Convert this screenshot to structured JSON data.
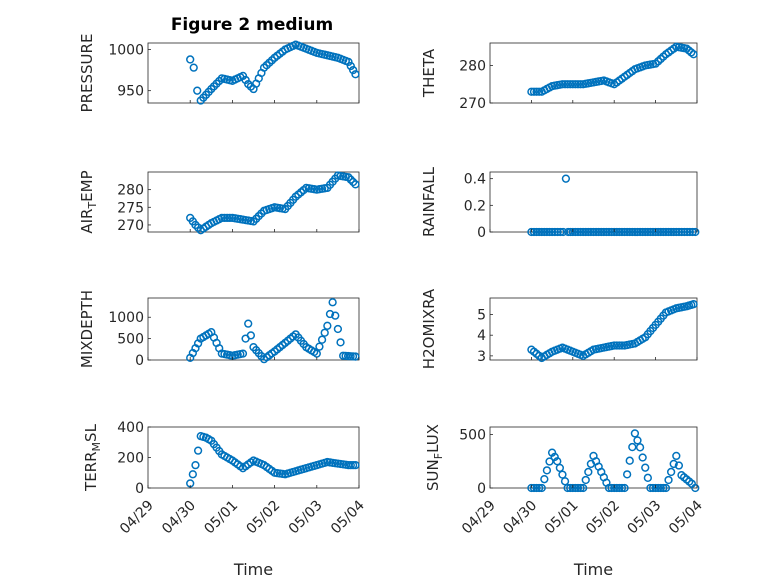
{
  "figure": {
    "title": "Figure 2 medium"
  },
  "chart_data": [
    {
      "type": "scatter",
      "id": "pressure",
      "ylabel": "PRESSURE",
      "ylim": [
        935,
        1008
      ],
      "yticks": [
        950,
        1000
      ],
      "xticks_shown": false,
      "color": "#0072BD",
      "x": [
        "04/30 00:00",
        "04/30 02:00",
        "04/30 04:00",
        "04/30 06:00",
        "04/30 09:00",
        "04/30 12:00",
        "04/30 18:00",
        "05/01 00:00",
        "05/01 06:00",
        "05/01 09:00",
        "05/01 12:00",
        "05/01 18:00",
        "05/02 00:00",
        "05/02 06:00",
        "05/02 12:00",
        "05/02 18:00",
        "05/03 00:00",
        "05/03 06:00",
        "05/03 12:00",
        "05/03 18:00",
        "05/03 22:00"
      ],
      "y": [
        988,
        978,
        950,
        938,
        945,
        952,
        965,
        962,
        968,
        958,
        952,
        978,
        990,
        1000,
        1006,
        1001,
        996,
        993,
        990,
        985,
        970
      ]
    },
    {
      "type": "scatter",
      "id": "theta",
      "ylabel": "THETA",
      "ylim": [
        270,
        286
      ],
      "yticks": [
        270,
        280
      ],
      "xticks_shown": false,
      "color": "#0072BD",
      "x": [
        "04/30 00:00",
        "04/30 06:00",
        "04/30 12:00",
        "04/30 18:00",
        "05/01 00:00",
        "05/01 06:00",
        "05/01 12:00",
        "05/01 18:00",
        "05/02 00:00",
        "05/02 06:00",
        "05/02 12:00",
        "05/02 18:00",
        "05/03 00:00",
        "05/03 06:00",
        "05/03 12:00",
        "05/03 18:00",
        "05/03 22:00"
      ],
      "y": [
        273,
        273,
        274.5,
        275,
        275,
        275,
        275.5,
        276,
        275,
        277,
        279,
        280,
        280.5,
        283,
        285,
        284.5,
        283
      ]
    },
    {
      "type": "scatter",
      "id": "air_temp",
      "ylabel_main": "AIR",
      "ylabel_sub": "T",
      "ylabel_rest": "EMP",
      "ylim": [
        268,
        285
      ],
      "yticks": [
        270,
        275,
        280
      ],
      "xticks_shown": false,
      "color": "#0072BD",
      "x": [
        "04/30 00:00",
        "04/30 03:00",
        "04/30 06:00",
        "04/30 12:00",
        "04/30 18:00",
        "05/01 00:00",
        "05/01 06:00",
        "05/01 12:00",
        "05/01 18:00",
        "05/02 00:00",
        "05/02 06:00",
        "05/02 12:00",
        "05/02 18:00",
        "05/03 00:00",
        "05/03 06:00",
        "05/03 12:00",
        "05/03 18:00",
        "05/03 22:00"
      ],
      "y": [
        272,
        270,
        268.5,
        270.5,
        272,
        272,
        271.5,
        271,
        274,
        275,
        274.5,
        278,
        280.5,
        280,
        280.5,
        284,
        283.5,
        281.5
      ]
    },
    {
      "type": "scatter",
      "id": "rainfall",
      "ylabel": "RAINFALL",
      "ylim": [
        0,
        0.45
      ],
      "yticks": [
        0,
        0.2,
        0.4
      ],
      "ytick_labels": [
        "0",
        "0.2",
        "0.4"
      ],
      "xticks_shown": false,
      "color": "#0072BD",
      "x": [
        "04/30 00:00",
        "04/30 12:00",
        "04/30 20:00",
        "05/01 00:00",
        "05/01 12:00",
        "05/02 00:00",
        "05/02 12:00",
        "05/03 00:00",
        "05/03 12:00",
        "05/03 23:00"
      ],
      "y": [
        0,
        0,
        0.4,
        0,
        0,
        0,
        0,
        0,
        0,
        0
      ]
    },
    {
      "type": "scatter",
      "id": "mixdepth",
      "ylabel": "MIXDEPTH",
      "ylim": [
        0,
        1450
      ],
      "yticks": [
        0,
        500,
        1000
      ],
      "xticks_shown": false,
      "color": "#0072BD",
      "x": [
        "04/30 00:00",
        "04/30 06:00",
        "04/30 12:00",
        "04/30 18:00",
        "05/01 00:00",
        "05/01 06:00",
        "05/01 09:00",
        "05/01 12:00",
        "05/01 18:00",
        "05/02 00:00",
        "05/02 06:00",
        "05/02 12:00",
        "05/02 18:00",
        "05/03 00:00",
        "05/03 06:00",
        "05/03 09:00",
        "05/03 15:00",
        "05/03 22:00"
      ],
      "y": [
        50,
        500,
        650,
        150,
        100,
        150,
        850,
        300,
        20,
        200,
        400,
        600,
        300,
        150,
        800,
        1350,
        100,
        80
      ]
    },
    {
      "type": "scatter",
      "id": "h2omixra",
      "ylabel": "H2OMIXRA",
      "ylim": [
        2.8,
        5.8
      ],
      "yticks": [
        3,
        4,
        5
      ],
      "xticks_shown": false,
      "color": "#0072BD",
      "x": [
        "04/30 00:00",
        "04/30 06:00",
        "04/30 12:00",
        "04/30 18:00",
        "05/01 00:00",
        "05/01 06:00",
        "05/01 12:00",
        "05/01 18:00",
        "05/02 00:00",
        "05/02 06:00",
        "05/02 12:00",
        "05/02 18:00",
        "05/03 00:00",
        "05/03 06:00",
        "05/03 12:00",
        "05/03 18:00",
        "05/03 22:00"
      ],
      "y": [
        3.3,
        2.9,
        3.2,
        3.4,
        3.2,
        3.0,
        3.3,
        3.4,
        3.5,
        3.5,
        3.6,
        3.9,
        4.5,
        5.1,
        5.3,
        5.4,
        5.5
      ]
    },
    {
      "type": "scatter",
      "id": "terr_msl",
      "ylabel_main": "TERR",
      "ylabel_sub": "M",
      "ylabel_rest": "SL",
      "ylim": [
        0,
        400
      ],
      "yticks": [
        0,
        200,
        400
      ],
      "xticks_shown": true,
      "color": "#0072BD",
      "x": [
        "04/30 00:00",
        "04/30 03:00",
        "04/30 06:00",
        "04/30 09:00",
        "04/30 12:00",
        "04/30 18:00",
        "05/01 00:00",
        "05/01 06:00",
        "05/01 12:00",
        "05/01 18:00",
        "05/02 00:00",
        "05/02 06:00",
        "05/02 12:00",
        "05/02 18:00",
        "05/03 00:00",
        "05/03 06:00",
        "05/03 12:00",
        "05/03 18:00",
        "05/03 22:00"
      ],
      "y": [
        30,
        150,
        340,
        330,
        310,
        220,
        180,
        130,
        180,
        150,
        100,
        90,
        110,
        130,
        150,
        170,
        160,
        150,
        150
      ]
    },
    {
      "type": "scatter",
      "id": "sun_flux",
      "ylabel_main": "SUN",
      "ylabel_sub": "F",
      "ylabel_rest": "LUX",
      "ylim": [
        0,
        570
      ],
      "yticks": [
        0,
        500
      ],
      "xticks_shown": true,
      "color": "#0072BD",
      "x": [
        "04/30 00:00",
        "04/30 06:00",
        "04/30 12:00",
        "04/30 15:00",
        "04/30 21:00",
        "05/01 00:00",
        "05/01 06:00",
        "05/01 12:00",
        "05/01 15:00",
        "05/01 21:00",
        "05/02 00:00",
        "05/02 06:00",
        "05/02 12:00",
        "05/02 15:00",
        "05/02 21:00",
        "05/03 00:00",
        "05/03 06:00",
        "05/03 12:00",
        "05/03 15:00",
        "05/03 21:00",
        "05/03 23:00"
      ],
      "y": [
        0,
        0,
        330,
        250,
        0,
        0,
        0,
        300,
        200,
        0,
        0,
        0,
        510,
        380,
        0,
        0,
        0,
        300,
        120,
        40,
        0
      ]
    }
  ],
  "xaxis": {
    "label": "Time",
    "range": [
      "04/29 00:00",
      "05/04 00:00"
    ],
    "ticks": [
      "04/29",
      "04/30",
      "05/01",
      "05/02",
      "05/03",
      "05/04"
    ]
  }
}
